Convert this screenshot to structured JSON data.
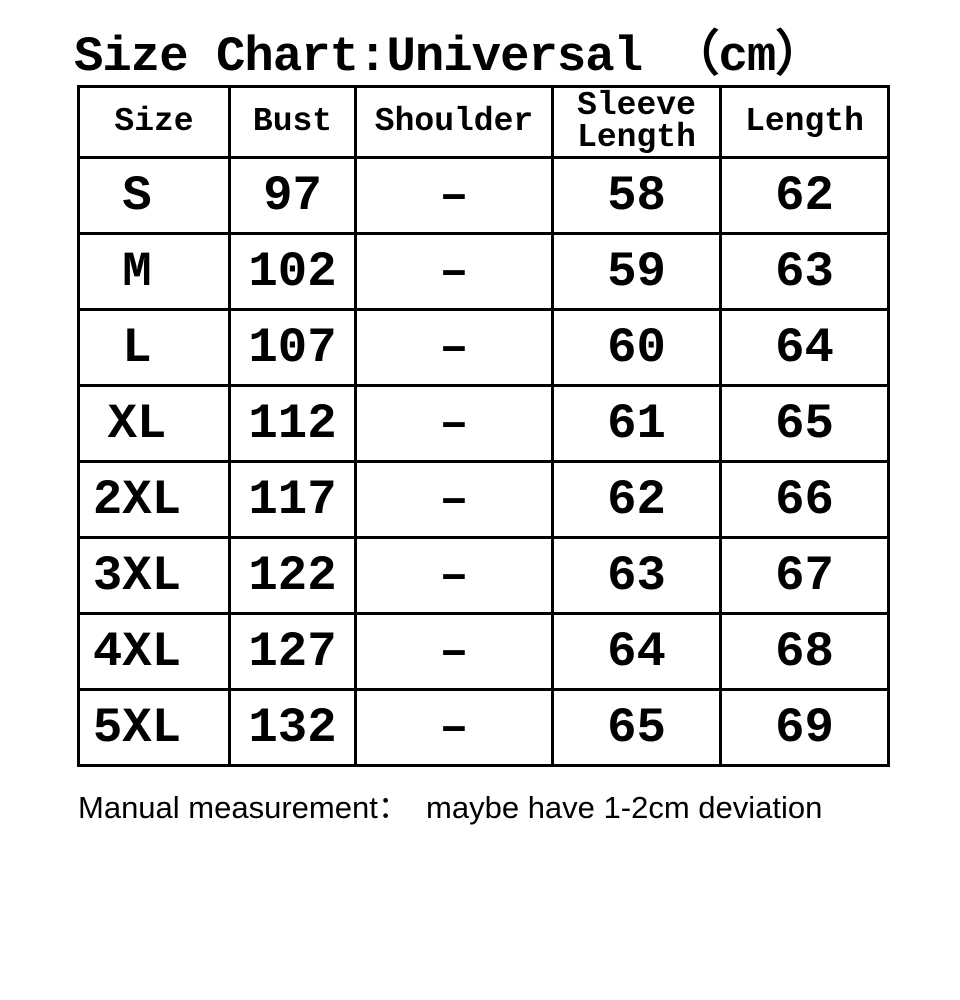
{
  "page": {
    "background_color": "#ffffff",
    "text_color": "#000000"
  },
  "title": "Size Chart:Universal （cm）",
  "table": {
    "headers": [
      "Size",
      "Bust",
      "Shoulder",
      "Sleeve Length",
      "Length"
    ],
    "rows": [
      {
        "size": "S",
        "bust": "97",
        "shoulder": "–",
        "sleeve_length": "58",
        "length": "62"
      },
      {
        "size": "M",
        "bust": "102",
        "shoulder": "–",
        "sleeve_length": "59",
        "length": "63"
      },
      {
        "size": "L",
        "bust": "107",
        "shoulder": "–",
        "sleeve_length": "60",
        "length": "64"
      },
      {
        "size": "XL",
        "bust": "112",
        "shoulder": "–",
        "sleeve_length": "61",
        "length": "65"
      },
      {
        "size": "2XL",
        "bust": "117",
        "shoulder": "–",
        "sleeve_length": "62",
        "length": "66"
      },
      {
        "size": "3XL",
        "bust": "122",
        "shoulder": "–",
        "sleeve_length": "63",
        "length": "67"
      },
      {
        "size": "4XL",
        "bust": "127",
        "shoulder": "–",
        "sleeve_length": "64",
        "length": "68"
      },
      {
        "size": "5XL",
        "bust": "132",
        "shoulder": "–",
        "sleeve_length": "65",
        "length": "69"
      }
    ]
  },
  "footer_note": "Manual measurement：  maybe have 1-2cm deviation",
  "chart_data": {
    "type": "table",
    "title": "Size Chart:Universal (cm)",
    "unit": "cm",
    "columns": [
      "Size",
      "Bust",
      "Shoulder",
      "Sleeve Length",
      "Length"
    ],
    "rows": [
      [
        "S",
        97,
        null,
        58,
        62
      ],
      [
        "M",
        102,
        null,
        59,
        63
      ],
      [
        "L",
        107,
        null,
        60,
        64
      ],
      [
        "XL",
        112,
        null,
        61,
        65
      ],
      [
        "2XL",
        117,
        null,
        62,
        66
      ],
      [
        "3XL",
        122,
        null,
        63,
        67
      ],
      [
        "4XL",
        127,
        null,
        64,
        68
      ],
      [
        "5XL",
        132,
        null,
        65,
        69
      ]
    ],
    "note": "Manual measurement: maybe have 1-2cm deviation (shoulder values not provided)"
  }
}
